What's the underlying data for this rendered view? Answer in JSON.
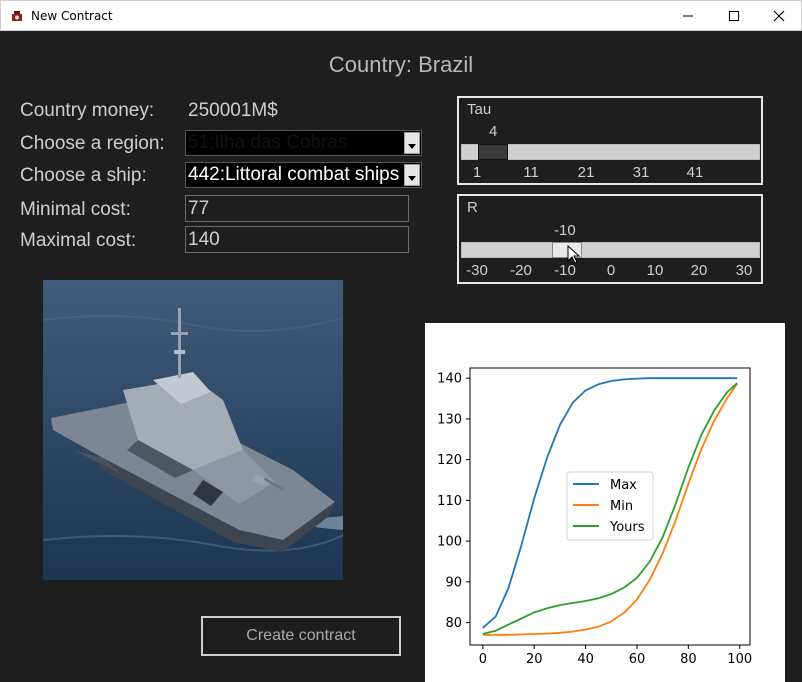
{
  "window": {
    "title": "New Contract",
    "minimize_icon": "minimize-icon",
    "maximize_icon": "maximize-icon",
    "close_icon": "close-icon"
  },
  "header": {
    "country_title": "Country: Brazil"
  },
  "form": {
    "money_label": "Country money:",
    "money_value": "250001M$",
    "region_label": "Choose a region:",
    "region_value": "51:Ilha das Cobras",
    "ship_label": "Choose a ship:",
    "ship_value": "442:Littoral combat ships",
    "min_cost_label": "Minimal cost:",
    "min_cost_value": "77",
    "max_cost_label": "Maximal cost:",
    "max_cost_value": "140"
  },
  "sliders": {
    "tau": {
      "label": "Tau",
      "value": "4",
      "ticks": [
        "1",
        "11",
        "21",
        "31",
        "41"
      ],
      "min": 1,
      "max": 50,
      "current": 4
    },
    "r": {
      "label": "R",
      "value": "-10",
      "ticks": [
        "-30",
        "-20",
        "-10",
        "0",
        "10",
        "20",
        "30"
      ],
      "min": -30,
      "max": 30,
      "current": -10
    }
  },
  "ship_image": {
    "alt_icon": "warship-photo"
  },
  "actions": {
    "create_label": "Create contract"
  },
  "chart_data": {
    "type": "line",
    "title": "",
    "xlabel": "",
    "ylabel": "",
    "xlim": [
      -5,
      104
    ],
    "ylim": [
      74.5,
      142.5
    ],
    "xticks": [
      "0",
      "20",
      "40",
      "60",
      "80",
      "100"
    ],
    "yticks": [
      "80",
      "90",
      "100",
      "110",
      "120",
      "130",
      "140"
    ],
    "legend_position": "center",
    "x": [
      0,
      5,
      10,
      15,
      20,
      25,
      30,
      35,
      40,
      45,
      50,
      55,
      60,
      65,
      70,
      75,
      80,
      85,
      90,
      95,
      99
    ],
    "series": [
      {
        "name": "Max",
        "color": "#1f77b4",
        "values": [
          78.7,
          81.5,
          88.5,
          99.0,
          110.5,
          120.5,
          128.5,
          134.0,
          137.0,
          138.5,
          139.3,
          139.7,
          139.9,
          140.0,
          140.0,
          140.0,
          140.0,
          140.0,
          140.0,
          140.0,
          140.0
        ]
      },
      {
        "name": "Min",
        "color": "#ff7f0e",
        "values": [
          77.0,
          77.0,
          77.0,
          77.1,
          77.2,
          77.3,
          77.5,
          77.8,
          78.3,
          79.0,
          80.3,
          82.4,
          85.7,
          90.5,
          97.0,
          105.0,
          114.0,
          122.5,
          129.5,
          135.0,
          138.7
        ]
      },
      {
        "name": "Yours",
        "color": "#2ca02c",
        "values": [
          77.2,
          78.0,
          79.5,
          81.0,
          82.5,
          83.5,
          84.3,
          84.8,
          85.3,
          86.0,
          87.0,
          88.6,
          91.0,
          95.0,
          101.0,
          109.0,
          118.0,
          126.0,
          132.0,
          136.5,
          138.8
        ]
      }
    ]
  }
}
